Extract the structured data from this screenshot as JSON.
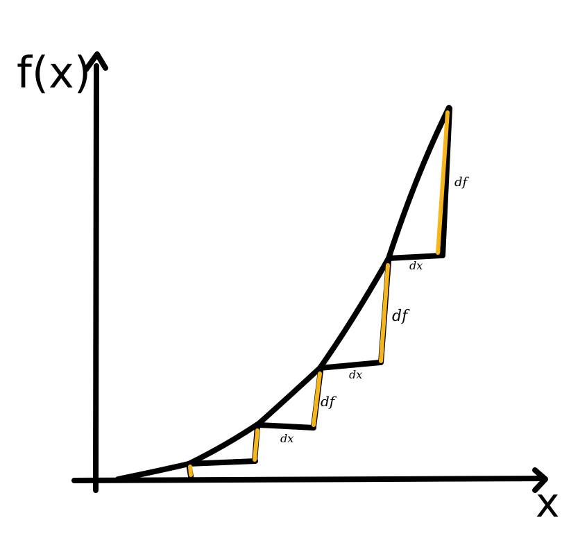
{
  "labels": {
    "y_axis": "f(x)",
    "x_axis": "x",
    "dx": "dx",
    "df": "df"
  },
  "colors": {
    "ink": "#000000",
    "highlight": "#f7b51c",
    "background": "#ffffff"
  }
}
